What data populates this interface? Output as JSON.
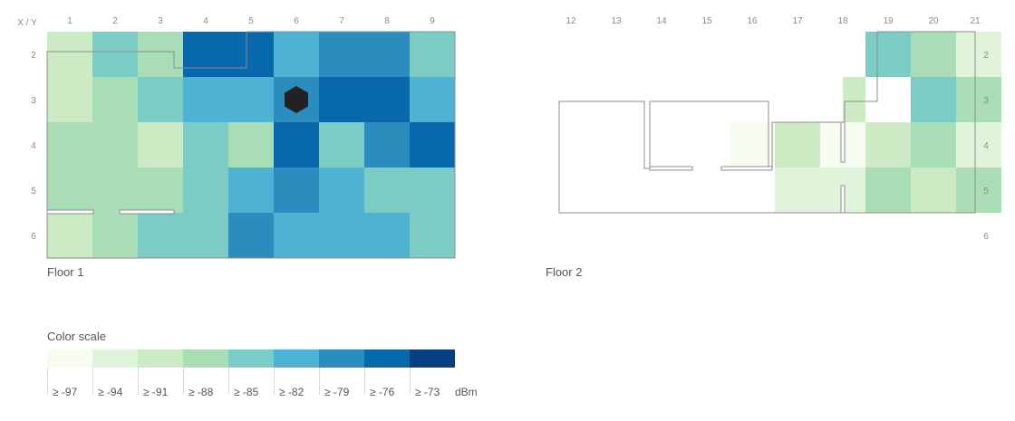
{
  "chart_data": {
    "type": "heatmap",
    "corner_label": "X / Y",
    "x_ticks": [
      "1",
      "2",
      "3",
      "4",
      "5",
      "6",
      "7",
      "8",
      "9",
      "12",
      "13",
      "14",
      "15",
      "16",
      "17",
      "18",
      "19",
      "20",
      "21"
    ],
    "y_ticks": [
      "2",
      "3",
      "4",
      "5",
      "6"
    ],
    "floors": [
      {
        "label": "Floor 1",
        "cells": [
          {
            "x": 1,
            "y": 2,
            "level": 2
          },
          {
            "x": 2,
            "y": 2,
            "level": 4
          },
          {
            "x": 3,
            "y": 2,
            "level": 3
          },
          {
            "x": 4,
            "y": 2,
            "level": 7
          },
          {
            "x": 5,
            "y": 2,
            "level": 7
          },
          {
            "x": 6,
            "y": 2,
            "level": 5
          },
          {
            "x": 7,
            "y": 2,
            "level": 6
          },
          {
            "x": 8,
            "y": 2,
            "level": 6
          },
          {
            "x": 9,
            "y": 2,
            "level": 4
          },
          {
            "x": 1,
            "y": 3,
            "level": 2
          },
          {
            "x": 2,
            "y": 3,
            "level": 3
          },
          {
            "x": 3,
            "y": 3,
            "level": 4
          },
          {
            "x": 4,
            "y": 3,
            "level": 5
          },
          {
            "x": 5,
            "y": 3,
            "level": 5
          },
          {
            "x": 6,
            "y": 3,
            "level": 6
          },
          {
            "x": 7,
            "y": 3,
            "level": 7
          },
          {
            "x": 8,
            "y": 3,
            "level": 7
          },
          {
            "x": 9,
            "y": 3,
            "level": 5
          },
          {
            "x": 1,
            "y": 4,
            "level": 3
          },
          {
            "x": 2,
            "y": 4,
            "level": 3
          },
          {
            "x": 3,
            "y": 4,
            "level": 2
          },
          {
            "x": 4,
            "y": 4,
            "level": 4
          },
          {
            "x": 5,
            "y": 4,
            "level": 3
          },
          {
            "x": 6,
            "y": 4,
            "level": 7
          },
          {
            "x": 7,
            "y": 4,
            "level": 4
          },
          {
            "x": 8,
            "y": 4,
            "level": 6
          },
          {
            "x": 9,
            "y": 4,
            "level": 7
          },
          {
            "x": 1,
            "y": 5,
            "level": 3
          },
          {
            "x": 2,
            "y": 5,
            "level": 3
          },
          {
            "x": 3,
            "y": 5,
            "level": 3
          },
          {
            "x": 4,
            "y": 5,
            "level": 4
          },
          {
            "x": 5,
            "y": 5,
            "level": 5
          },
          {
            "x": 6,
            "y": 5,
            "level": 6
          },
          {
            "x": 7,
            "y": 5,
            "level": 5
          },
          {
            "x": 8,
            "y": 5,
            "level": 4
          },
          {
            "x": 9,
            "y": 5,
            "level": 4
          },
          {
            "x": 1,
            "y": 6,
            "level": 2
          },
          {
            "x": 2,
            "y": 6,
            "level": 3
          },
          {
            "x": 3,
            "y": 6,
            "level": 4
          },
          {
            "x": 4,
            "y": 6,
            "level": 4
          },
          {
            "x": 5,
            "y": 6,
            "level": 6
          },
          {
            "x": 6,
            "y": 6,
            "level": 5
          },
          {
            "x": 7,
            "y": 6,
            "level": 5
          },
          {
            "x": 8,
            "y": 6,
            "level": 5
          },
          {
            "x": 9,
            "y": 6,
            "level": 4
          }
        ],
        "marker": {
          "shape": "hexagon",
          "x": 6.5,
          "y": 3,
          "color": "#222222"
        }
      },
      {
        "label": "Floor 2",
        "cells": [
          {
            "x": 19,
            "y": 2,
            "level": 4
          },
          {
            "x": 20,
            "y": 2,
            "level": 3
          },
          {
            "x": 21,
            "y": 2,
            "level": 1
          },
          {
            "x": 18.5,
            "y": 3,
            "level": 2
          },
          {
            "x": 20,
            "y": 3,
            "level": 4
          },
          {
            "x": 21,
            "y": 3,
            "level": 3
          },
          {
            "x": 16,
            "y": 4,
            "level": 0
          },
          {
            "x": 17,
            "y": 4,
            "level": 2
          },
          {
            "x": 18,
            "y": 4,
            "level": 0
          },
          {
            "x": 19,
            "y": 4,
            "level": 2
          },
          {
            "x": 20,
            "y": 4,
            "level": 3
          },
          {
            "x": 21,
            "y": 4,
            "level": 1
          },
          {
            "x": 17,
            "y": 5,
            "level": 1
          },
          {
            "x": 18,
            "y": 5,
            "level": 1
          },
          {
            "x": 19,
            "y": 5,
            "level": 3
          },
          {
            "x": 20,
            "y": 5,
            "level": 2
          },
          {
            "x": 21,
            "y": 5,
            "level": 3
          }
        ]
      }
    ],
    "legend": {
      "title": "Color scale",
      "unit": "dBm",
      "thresholds": [
        "≥ -97",
        "≥ -94",
        "≥ -91",
        "≥ -88",
        "≥ -85",
        "≥ -82",
        "≥ -79",
        "≥ -76",
        "≥ -73"
      ],
      "colors": [
        "#f7fcf0",
        "#e0f3db",
        "#ccebc5",
        "#a8ddb5",
        "#7bccc4",
        "#4eb3d3",
        "#2b8cbe",
        "#0868ac",
        "#084081"
      ]
    },
    "grid": false
  }
}
